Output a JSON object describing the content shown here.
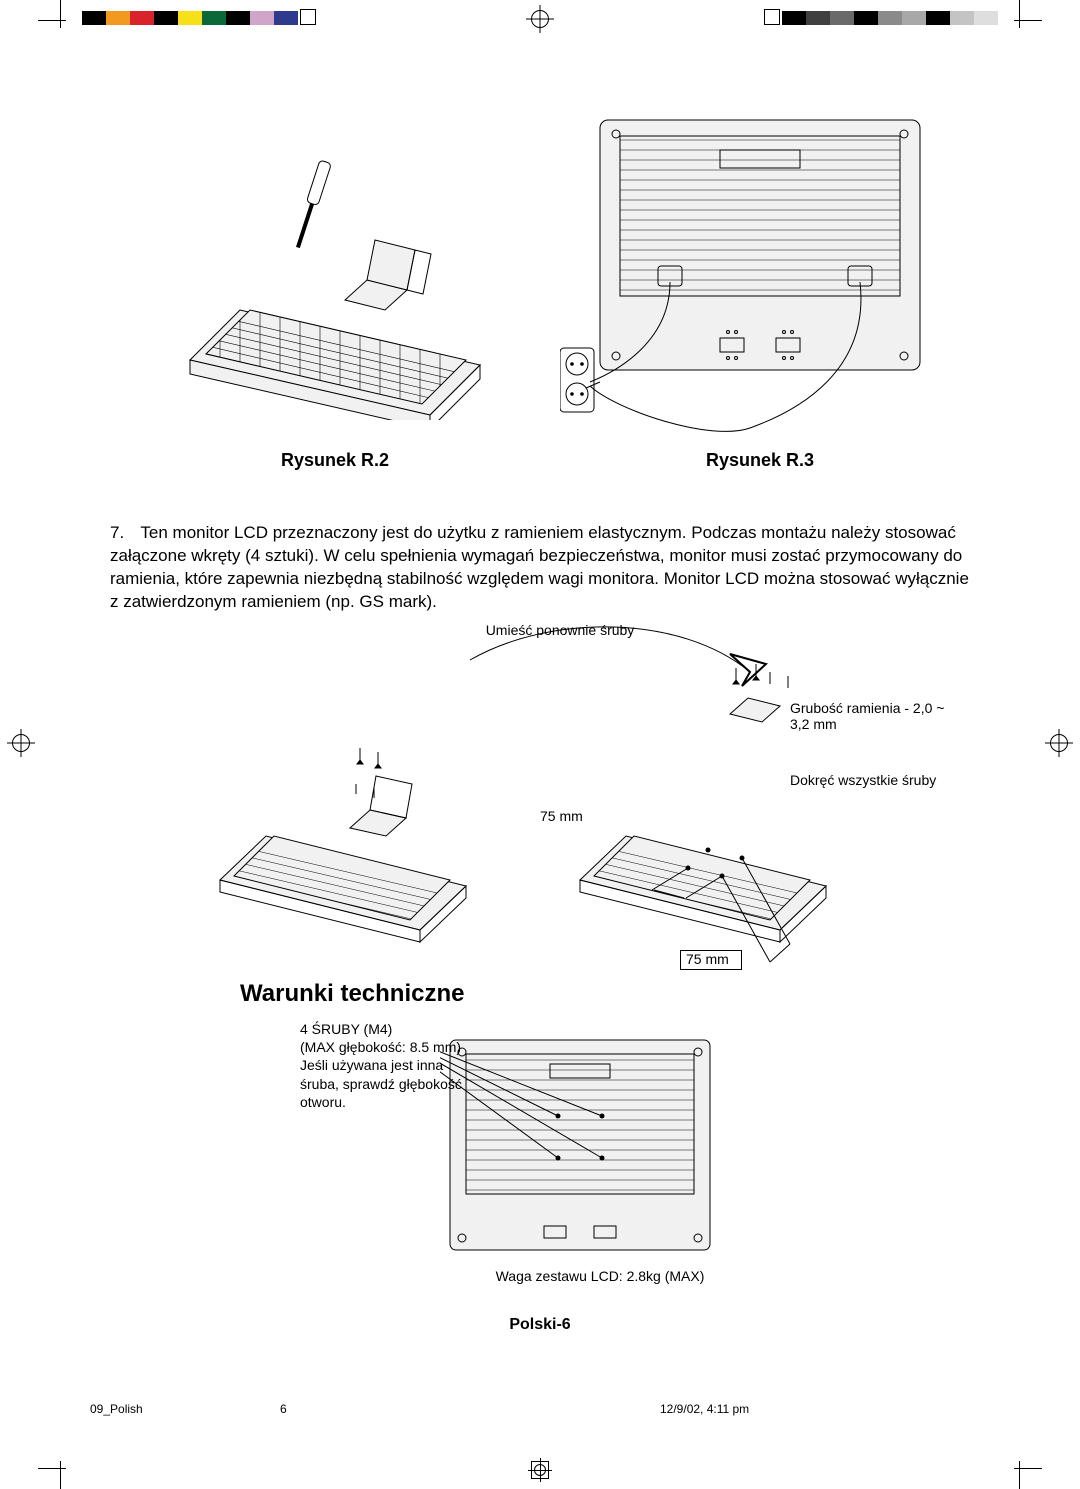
{
  "colorbars": {
    "left": [
      "#000000",
      "#f29a1f",
      "#d8232a",
      "#000000",
      "#f7e017",
      "#0b6838",
      "#000000",
      "#cfa5c9",
      "#2e3a8c"
    ],
    "right": [
      "#000000",
      "#404040",
      "#6a6a6a",
      "#000000",
      "#8a8a8a",
      "#a8a8a8",
      "#000000",
      "#c4c4c4",
      "#dedede"
    ]
  },
  "figures": {
    "r2": {
      "caption": "Rysunek R.2"
    },
    "r3": {
      "caption": "Rysunek R.3"
    },
    "annotations": {
      "screws_again": "Umieść ponownie śruby",
      "arm_thickness": "Grubość ramienia - 2,0 ~ 3,2 mm",
      "tighten": "Dokręć wszystkie śruby",
      "dim_75_h": "75 mm",
      "dim_75_v": "75 mm"
    }
  },
  "body": {
    "item_number": "7.",
    "text": "Ten monitor LCD przeznaczony jest do użytku z ramieniem elastycznym. Podczas montażu należy stosować załączone wkręty (4 sztuki). W celu spełnienia wymagań bezpieczeństwa, monitor musi zostać przymocowany do ramienia, które zapewnia niezbędną stabilność względem wagi monitora. Monitor LCD można stosować wyłącznie z zatwierdzonym ramieniem (np. GS mark)."
  },
  "tech": {
    "heading": "Warunki techniczne",
    "screws_line1": "4 ŚRUBY (M4)",
    "screws_line2": "(MAX głębokość: 8.5 mm)",
    "screws_note": "Jeśli używana jest inna śruba, sprawdź głębokość otworu.",
    "weight": "Waga zestawu LCD: 2.8kg (MAX)"
  },
  "footer": {
    "page": "Polski-6",
    "left": "09_Polish",
    "num": "6",
    "right": "12/9/02, 4:11 pm"
  }
}
